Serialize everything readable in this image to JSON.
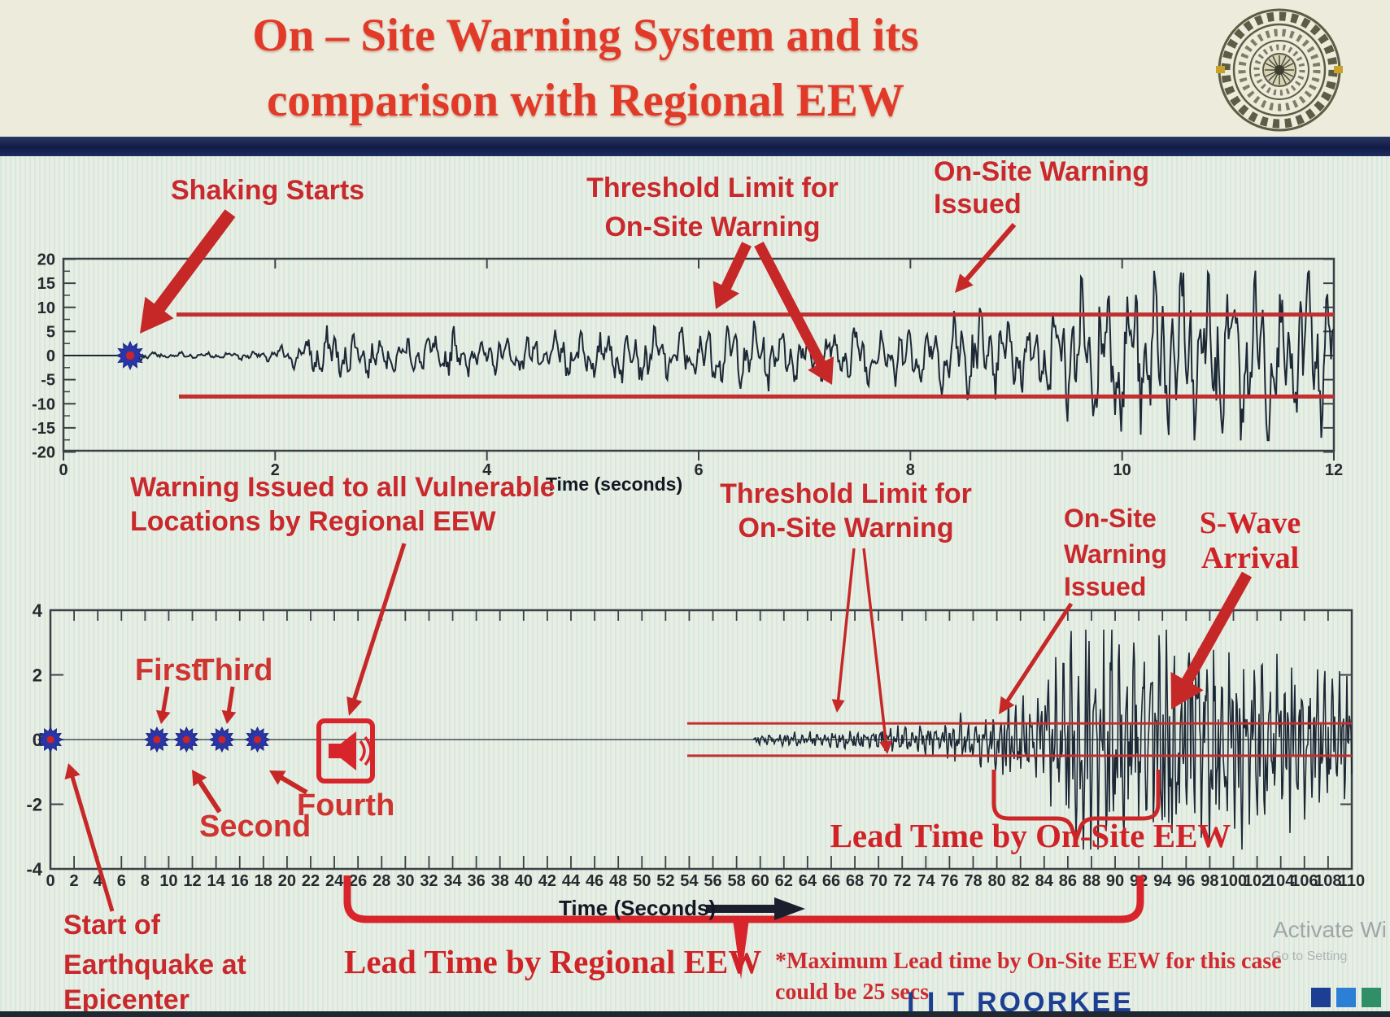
{
  "colors": {
    "accent_red": "#c9282c",
    "arrow_red": "#c62828",
    "threshold_red": "#c03030",
    "wave_navy": "#1d2836",
    "marker_blue": "#2a35a8",
    "marker_core_red": "#cc2527",
    "brand_navy": "#1c3f94",
    "title_red": "#e23a28"
  },
  "header": {
    "title_line1": "On – Site Warning System and its",
    "title_line2": "comparison with Regional EEW",
    "logo_name": "iit-roorkee-emblem"
  },
  "chart_data": [
    {
      "id": "onsite-seismogram",
      "type": "line",
      "xlabel": "Time (seconds)",
      "xlim": [
        0,
        12
      ],
      "xtick_step": 2,
      "ylim": [
        -20,
        20
      ],
      "ytick_step": 5,
      "grid": false,
      "threshold": {
        "label_lines": [
          "Threshold Limit for",
          "On-Site Warning"
        ],
        "upper": 8.5,
        "lower": -8.5
      },
      "events": {
        "shaking_starts": {
          "label": "Shaking Starts",
          "t": 0.63
        },
        "warning_issued": {
          "label_lines": [
            "On-Site Warning",
            "Issued"
          ],
          "t": 8.5
        }
      },
      "envelope": [
        [
          0,
          0
        ],
        [
          0.6,
          0
        ],
        [
          0.66,
          0.9
        ],
        [
          0.9,
          0.55
        ],
        [
          1.4,
          0.6
        ],
        [
          1.9,
          0.8
        ],
        [
          2.2,
          2.2
        ],
        [
          2.5,
          4.6
        ],
        [
          2.9,
          3.4
        ],
        [
          3.3,
          3.0
        ],
        [
          3.7,
          4.4
        ],
        [
          4.1,
          2.9
        ],
        [
          4.6,
          3.6
        ],
        [
          5.1,
          4.8
        ],
        [
          5.6,
          4.1
        ],
        [
          6.1,
          4.4
        ],
        [
          6.6,
          5.1
        ],
        [
          7.1,
          4.3
        ],
        [
          7.6,
          5.1
        ],
        [
          8.1,
          4.8
        ],
        [
          8.45,
          7.2
        ],
        [
          8.65,
          9.0
        ],
        [
          8.9,
          5.6
        ],
        [
          9.2,
          6.4
        ],
        [
          9.5,
          10.5
        ],
        [
          9.8,
          14.0
        ],
        [
          10.1,
          11.5
        ],
        [
          10.45,
          16.8
        ],
        [
          10.8,
          13.5
        ],
        [
          11.15,
          16.0
        ],
        [
          11.5,
          12.5
        ],
        [
          11.8,
          14.5
        ],
        [
          12,
          13.0
        ]
      ]
    },
    {
      "id": "regional-comparison-seismogram",
      "type": "line",
      "xlabel": "Time (Seconds)",
      "xlim": [
        0,
        110
      ],
      "xtick_step": 2,
      "ylim": [
        -4,
        4
      ],
      "ytick_step": 2,
      "grid": false,
      "threshold": {
        "label_lines": [
          "Threshold Limit for",
          "On-Site Warning"
        ],
        "upper": 0.5,
        "lower": -0.5
      },
      "epicenter_marker": {
        "t": 0,
        "label_lines": [
          "Start of",
          "Earthquake at",
          "Epicenter"
        ]
      },
      "p_wave_reports": {
        "label_lines": [
          "Warning Issued to all Vulnerable",
          "Locations by Regional EEW"
        ],
        "markers": [
          {
            "label": "First",
            "t": 9
          },
          {
            "label": "Second",
            "t": 11.5
          },
          {
            "label": "Third",
            "t": 14.5
          },
          {
            "label": "Fourth",
            "t": 17.5
          }
        ],
        "regional_warning_icon_t": 25
      },
      "events": {
        "warning_issued": {
          "label_lines": [
            "On-Site",
            "Warning",
            "Issued"
          ],
          "t": 80
        },
        "s_wave": {
          "label_lines": [
            "S-Wave",
            "Arrival"
          ],
          "t": 93
        }
      },
      "lead_time_onsite": {
        "label": "Lead Time by On-Site EEW",
        "span": [
          80,
          94
        ]
      },
      "lead_time_regional": {
        "label": "Lead Time by Regional EEW",
        "span": [
          25,
          92.5
        ]
      },
      "note_line1": "*Maximum Lead time by On-Site EEW for this case",
      "note_line2": "could be 25 secs",
      "envelope": [
        [
          0,
          0
        ],
        [
          59.4,
          0
        ],
        [
          59.8,
          0.14
        ],
        [
          63,
          0.18
        ],
        [
          66,
          0.22
        ],
        [
          69,
          0.28
        ],
        [
          72,
          0.33
        ],
        [
          75,
          0.38
        ],
        [
          76.5,
          0.6
        ],
        [
          78,
          0.5
        ],
        [
          80,
          0.85
        ],
        [
          82,
          1.15
        ],
        [
          84,
          1.4
        ],
        [
          85.5,
          2.2
        ],
        [
          87,
          2.9
        ],
        [
          88.5,
          3.2
        ],
        [
          90,
          3.35
        ],
        [
          91.5,
          2.9
        ],
        [
          93,
          3.2
        ],
        [
          94.5,
          3.0
        ],
        [
          96,
          2.7
        ],
        [
          97.5,
          2.9
        ],
        [
          99,
          2.5
        ],
        [
          100.5,
          2.7
        ],
        [
          102,
          2.3
        ],
        [
          103.5,
          2.0
        ],
        [
          105,
          2.1
        ],
        [
          106.5,
          1.8
        ],
        [
          108,
          1.9
        ],
        [
          110,
          1.7
        ]
      ]
    }
  ],
  "footer": {
    "watermark_line1": "Activate Wi",
    "watermark_line2": "Go to Setting",
    "brand": "I I T ROORKEE",
    "brand_squares": [
      "#1c3f94",
      "#2b7fd4",
      "#2f8f66"
    ]
  }
}
